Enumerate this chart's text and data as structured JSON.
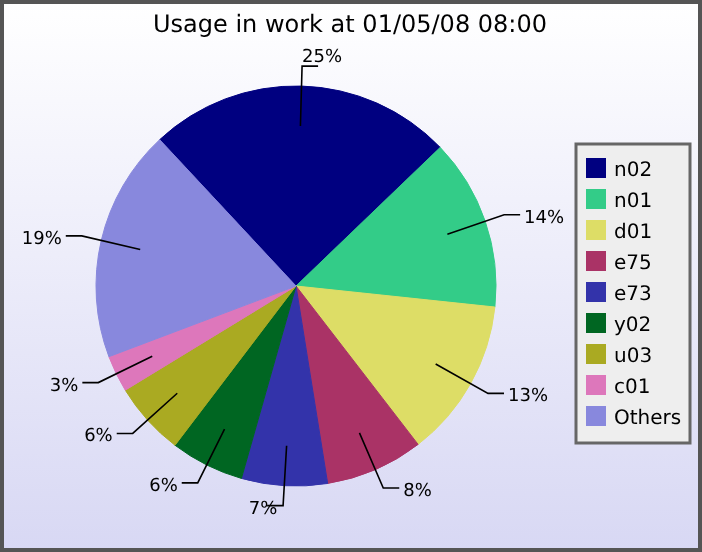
{
  "chart_data": {
    "type": "pie",
    "title": "Usage in work at 01/05/08 08:00",
    "categories": [
      "n02",
      "n01",
      "d01",
      "e75",
      "e73",
      "y02",
      "u03",
      "c01",
      "Others"
    ],
    "values": [
      25,
      14,
      13,
      8,
      7,
      6,
      6,
      3,
      19
    ],
    "colors": [
      "#000080",
      "#33cc88",
      "#dddd66",
      "#aa3366",
      "#3333aa",
      "#006622",
      "#aaaa22",
      "#dd77bb",
      "#8888dd"
    ],
    "value_labels": [
      "25%",
      "14%",
      "13%",
      "8%",
      "7%",
      "6%",
      "6%",
      "3%",
      "19%"
    ],
    "legend": "right"
  }
}
